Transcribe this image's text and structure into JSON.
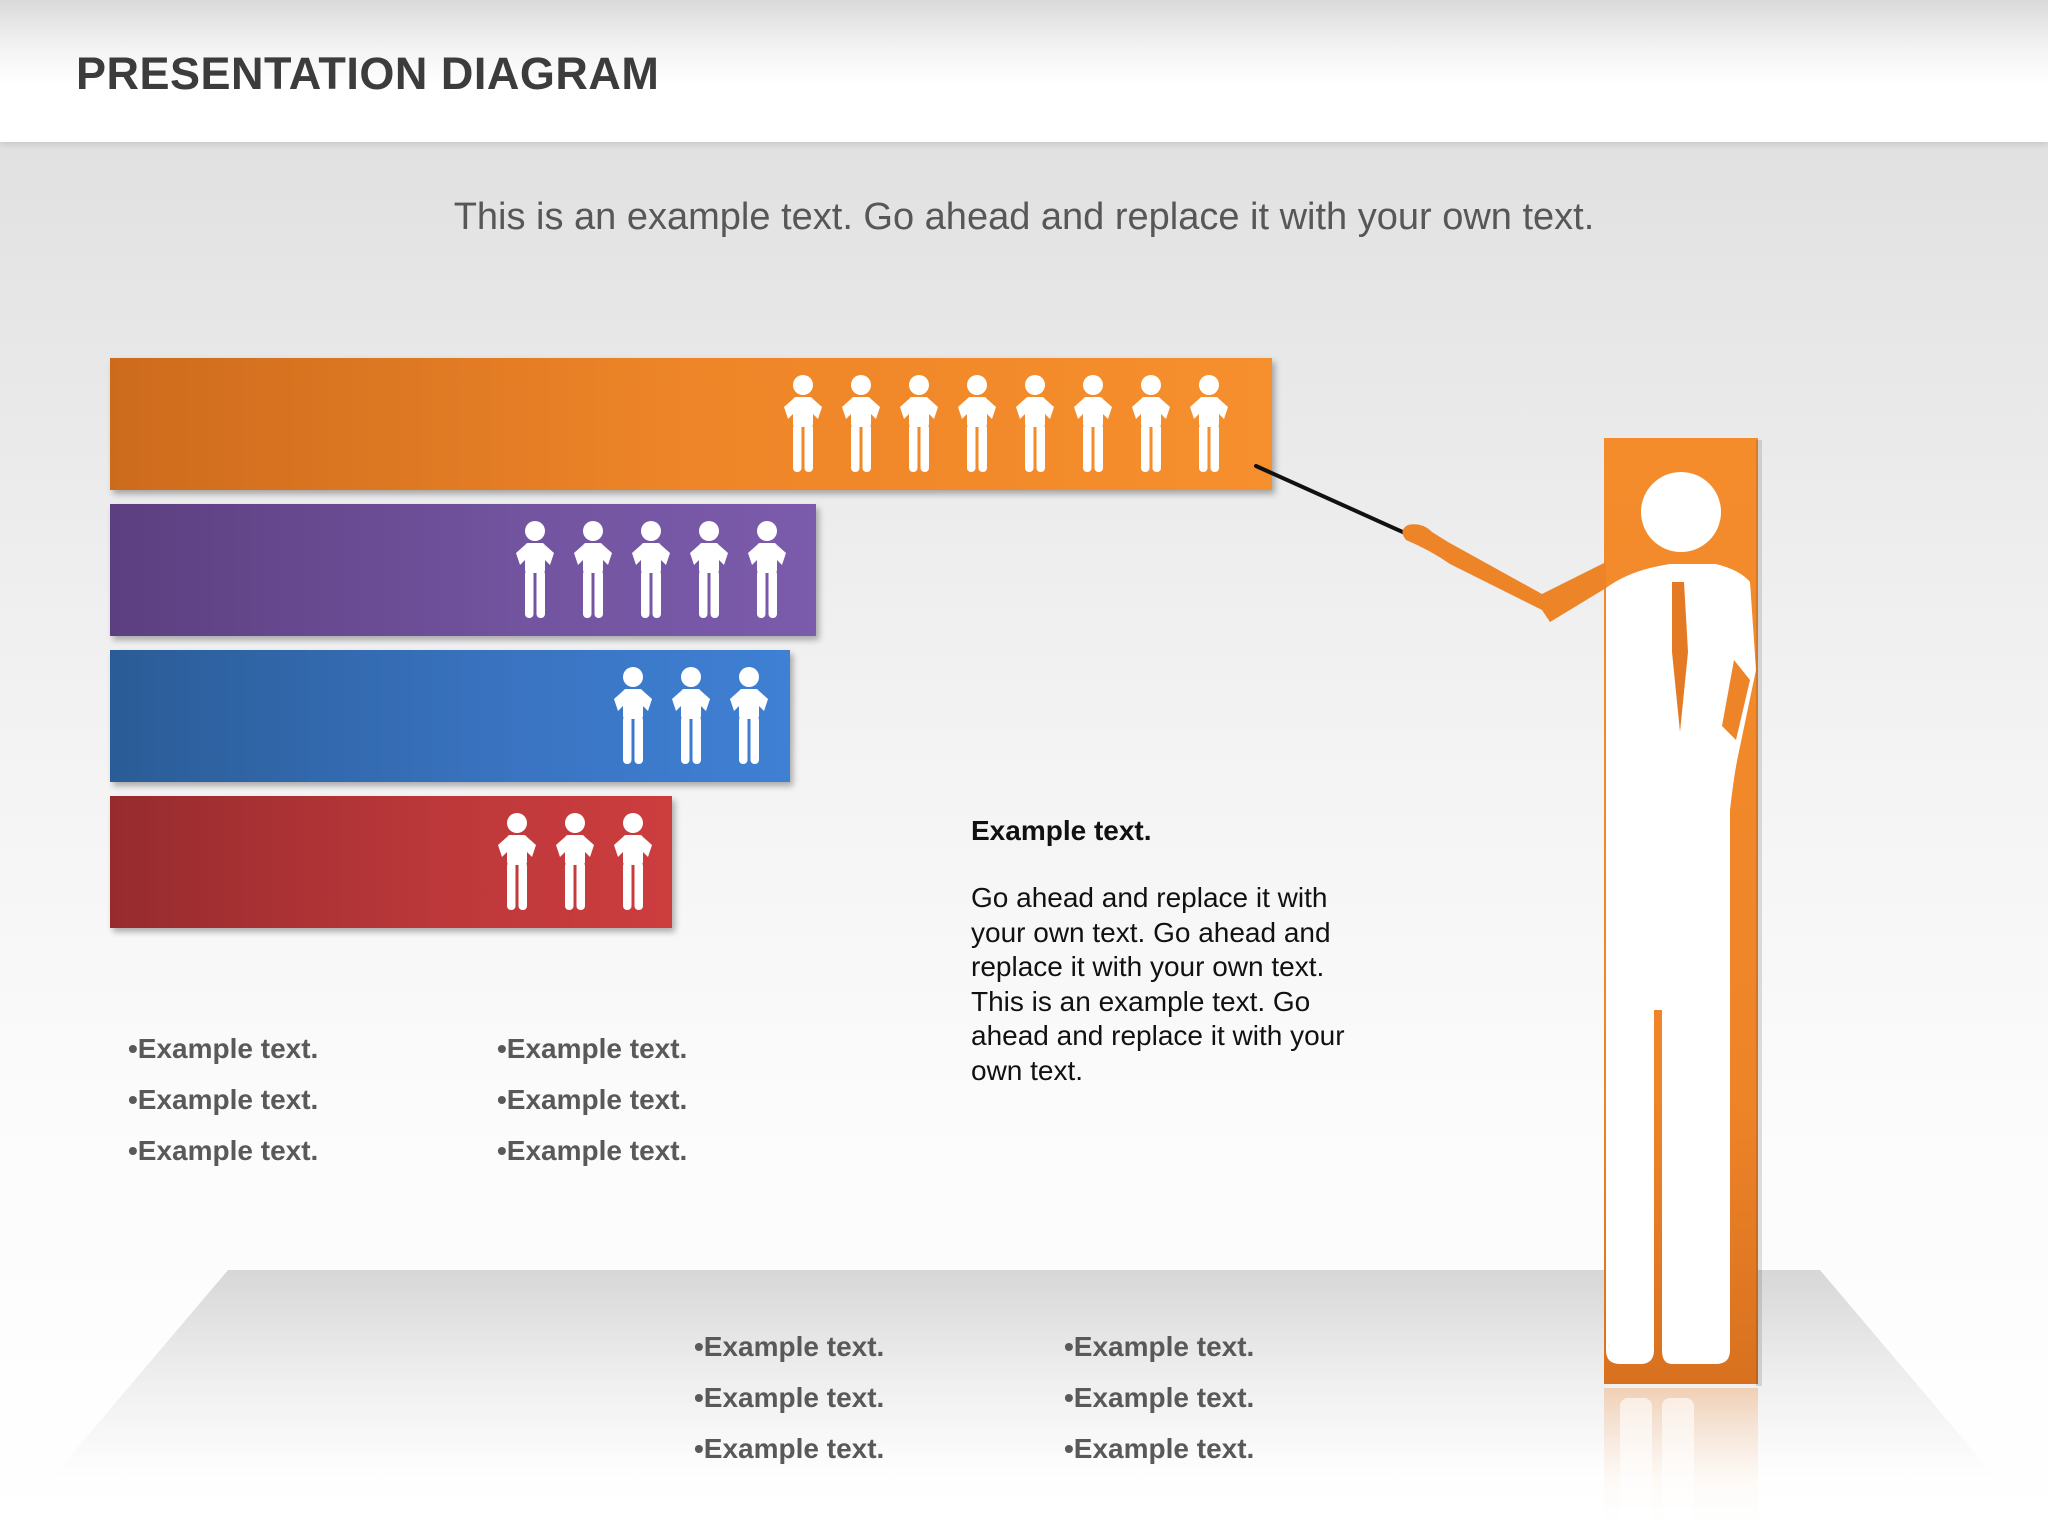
{
  "header": {
    "title": "PRESENTATION DIAGRAM"
  },
  "subtitle": "This is an example text. Go ahead and replace it with your own text.",
  "colors": {
    "orange": "#F28A2B",
    "purple": "#6E519E",
    "blue": "#3A75C4",
    "red": "#C13A3B",
    "person": "#FFFFFF"
  },
  "bars": [
    {
      "name": "orange",
      "people": 8
    },
    {
      "name": "purple",
      "people": 5
    },
    {
      "name": "blue",
      "people": 3
    },
    {
      "name": "red",
      "people": 3
    }
  ],
  "bullets_left": [
    "•Example text.",
    "•Example text.",
    "•Example text."
  ],
  "bullets_mid": [
    "•Example text.",
    "•Example text.",
    "•Example text."
  ],
  "bullets_floor_left": [
    "•Example text.",
    "•Example text.",
    "•Example text."
  ],
  "bullets_floor_right": [
    "•Example text.",
    "•Example text.",
    "•Example text."
  ],
  "description": {
    "heading": "Example text.",
    "body": "Go ahead and replace it with your own text. Go ahead and replace it with your own text. This is an example text. Go ahead and replace it with your own text."
  }
}
